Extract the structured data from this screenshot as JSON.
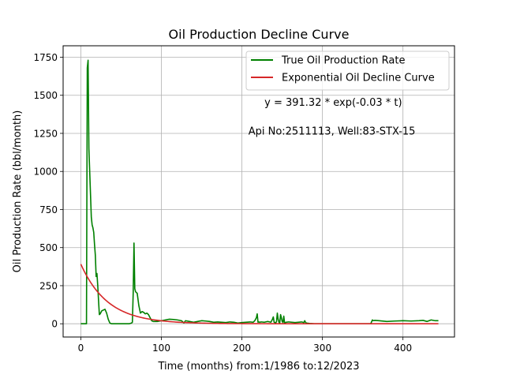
{
  "chart_data": {
    "type": "line",
    "title": "Oil Production Decline Curve",
    "xlabel": "Time (months) from:1/1986 to:12/2023",
    "ylabel": "Oil Production Rate (bbl/month)",
    "xlim": [
      -22,
      464
    ],
    "ylim": [
      -87,
      1825
    ],
    "xticks": [
      0,
      100,
      200,
      300,
      400
    ],
    "yticks": [
      0,
      250,
      500,
      750,
      1000,
      1250,
      1500,
      1750
    ],
    "grid": true,
    "legend": "top-right",
    "annotations": [
      {
        "text": "y = 391.32 * exp(-0.03 * t)",
        "x": 228,
        "y": 1432
      },
      {
        "text": "Api No:2511113, Well:83-STX-15",
        "x": 208,
        "y": 1242
      }
    ],
    "series": [
      {
        "name": "True Oil Production Rate",
        "color": "#008000",
        "x": [
          0,
          4,
          7,
          8,
          9,
          10,
          11,
          12,
          13,
          14,
          15,
          16,
          17,
          18,
          19,
          20,
          21,
          22,
          23,
          24,
          25,
          26,
          28,
          30,
          32,
          34,
          36,
          38,
          40,
          42,
          45,
          50,
          55,
          60,
          63,
          64,
          65,
          66,
          67,
          68,
          69,
          70,
          72,
          74,
          76,
          78,
          80,
          82,
          84,
          86,
          88,
          90,
          95,
          100,
          105,
          110,
          115,
          120,
          125,
          128,
          130,
          135,
          140,
          145,
          150,
          155,
          160,
          165,
          170,
          175,
          180,
          185,
          190,
          195,
          200,
          205,
          210,
          214,
          216,
          218,
          219,
          220,
          221,
          222,
          224,
          228,
          232,
          236,
          238,
          239,
          240,
          241,
          242,
          243,
          244,
          245,
          246,
          247,
          248,
          249,
          250,
          251,
          252,
          253,
          255,
          258,
          262,
          266,
          270,
          274,
          277,
          278,
          279,
          280,
          284,
          290,
          300,
          310,
          320,
          330,
          340,
          350,
          360,
          362,
          363,
          365,
          370,
          380,
          390,
          400,
          410,
          420,
          425,
          430,
          435,
          440,
          444
        ],
        "y": [
          0,
          0,
          0,
          1680,
          1730,
          1150,
          1000,
          850,
          700,
          650,
          630,
          600,
          520,
          450,
          310,
          330,
          250,
          150,
          60,
          65,
          75,
          85,
          90,
          95,
          70,
          30,
          5,
          0,
          0,
          0,
          0,
          0,
          0,
          0,
          5,
          10,
          200,
          530,
          230,
          210,
          205,
          200,
          120,
          70,
          80,
          75,
          65,
          70,
          60,
          40,
          20,
          15,
          15,
          20,
          25,
          30,
          28,
          25,
          20,
          5,
          20,
          15,
          10,
          15,
          20,
          18,
          15,
          10,
          12,
          10,
          8,
          12,
          10,
          5,
          8,
          10,
          12,
          10,
          20,
          40,
          65,
          10,
          12,
          10,
          12,
          10,
          15,
          10,
          30,
          45,
          10,
          8,
          5,
          15,
          70,
          30,
          10,
          5,
          60,
          40,
          15,
          8,
          50,
          5,
          10,
          12,
          10,
          8,
          10,
          12,
          8,
          20,
          10,
          5,
          2,
          0,
          0,
          0,
          0,
          0,
          0,
          0,
          0,
          25,
          20,
          22,
          20,
          15,
          18,
          20,
          18,
          20,
          22,
          15,
          25,
          20,
          20
        ]
      },
      {
        "name": "Exponential Oil Decline Curve",
        "color": "#d62728",
        "function": {
          "a": 391.32,
          "b": 0.03,
          "t_start": 0,
          "t_end": 444
        }
      }
    ]
  }
}
